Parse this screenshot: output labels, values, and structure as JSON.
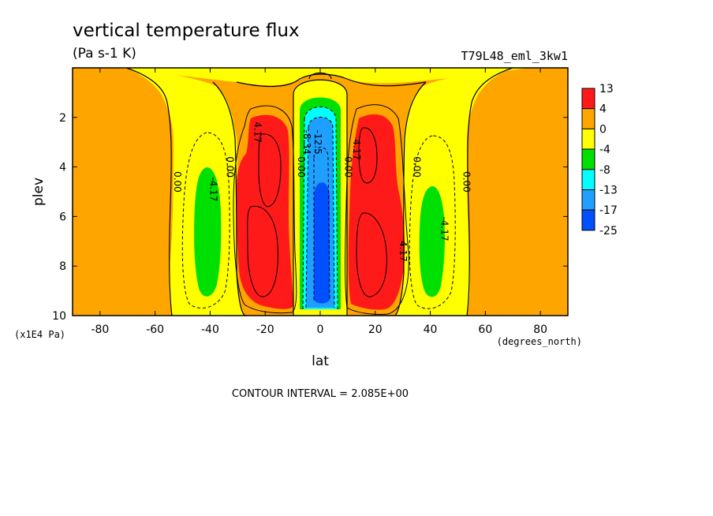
{
  "chart_data": {
    "type": "heatmap",
    "title": "vertical temperature flux",
    "units": "(Pa s-1 K)",
    "experiment": "T79L48_eml_3kw1",
    "xlabel": "lat",
    "x_units": "(degrees_north)",
    "ylabel": "plev",
    "y_units": "(x1E4 Pa)",
    "xlim": [
      -90,
      90
    ],
    "ylim": [
      10,
      0
    ],
    "x_ticks": [
      -80,
      -60,
      -40,
      -20,
      0,
      20,
      40,
      60,
      80
    ],
    "x_tick_labels": [
      "-80",
      "-60",
      "-40",
      "-20",
      "0",
      "20",
      "40",
      "60",
      "80"
    ],
    "y_ticks": [
      2,
      4,
      6,
      8,
      10
    ],
    "y_tick_labels": [
      "2",
      "4",
      "6",
      "8",
      "10"
    ],
    "note": "CONTOUR INTERVAL = 2.085E+00",
    "colorbar": {
      "labels": [
        "13",
        "4",
        "0",
        "-4",
        "-8",
        "-13",
        "-17",
        "-25"
      ],
      "colors": [
        "#ff1a1a",
        "#ffa500",
        "#ffff00",
        "#00e000",
        "#00ffff",
        "#1f9fff",
        "#0050ff"
      ]
    },
    "contour_labels": [
      {
        "text": "0.00",
        "lat": -53,
        "plev": 4.6
      },
      {
        "text": "0.00",
        "lat": -34,
        "plev": 4.0
      },
      {
        "text": "-4.17",
        "lat": -40,
        "plev": 4.9
      },
      {
        "text": "4.17",
        "lat": -24,
        "plev": 2.6
      },
      {
        "text": "0.00",
        "lat": -8,
        "plev": 4.0
      },
      {
        "text": "-8.34",
        "lat": -6,
        "plev": 3.0
      },
      {
        "text": "-12.5",
        "lat": -2,
        "plev": 3.0
      },
      {
        "text": "0.00",
        "lat": 9,
        "plev": 4.0
      },
      {
        "text": "4.17",
        "lat": 12,
        "plev": 3.3
      },
      {
        "text": "0.00",
        "lat": 34,
        "plev": 4.0
      },
      {
        "text": "-4.17",
        "lat": 44,
        "plev": 6.5
      },
      {
        "text": "4.17",
        "lat": 29,
        "plev": 7.4
      },
      {
        "text": "0.00",
        "lat": 52,
        "plev": 4.6
      }
    ]
  }
}
